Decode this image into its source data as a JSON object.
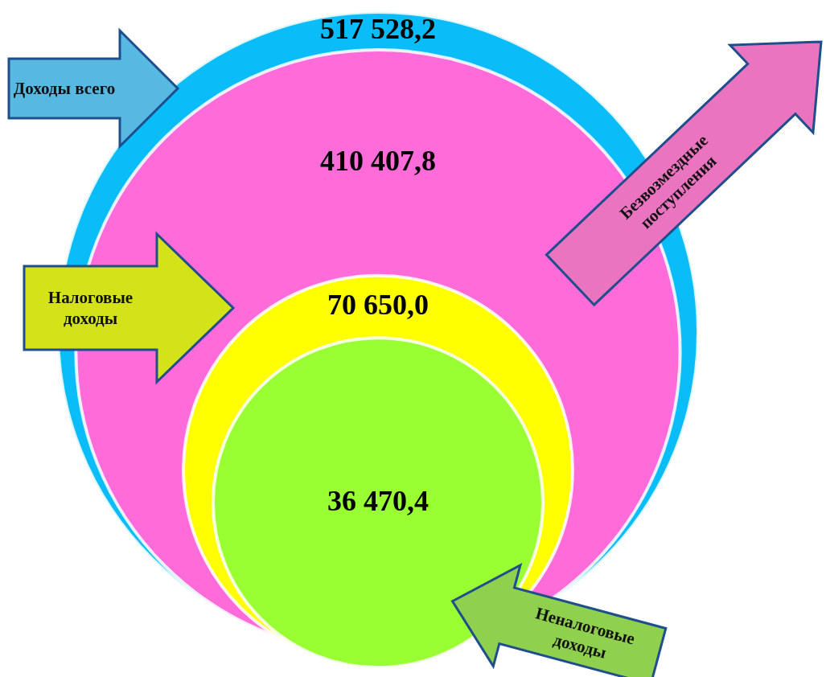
{
  "chart_data": {
    "type": "other",
    "categories": [
      "Доходы всего",
      "Безвозмездные поступления",
      "Налоговые доходы",
      "Неналоговые доходы"
    ],
    "values": [
      517528.2,
      410407.8,
      70650.0,
      36470.4
    ],
    "value_labels": [
      "517 528,2",
      "410 407,8",
      "70 650,0",
      "36 470,4"
    ],
    "colors": [
      "#0abdf9",
      "#ff6bd9",
      "#ffff00",
      "#99ff33"
    ]
  }
}
